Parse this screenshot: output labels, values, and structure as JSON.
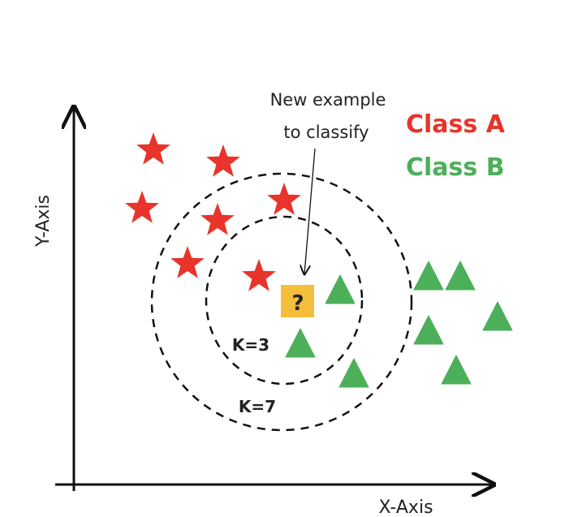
{
  "axes": {
    "x_label": "X-Axis",
    "y_label": "Y-Axis"
  },
  "annotation": {
    "line1": "New example",
    "line2": "to classify"
  },
  "legend": [
    {
      "label": "Class A",
      "color": "#e8342a",
      "shape": "star"
    },
    {
      "label": "Class B",
      "color": "#4caf5a",
      "shape": "triangle"
    }
  ],
  "query_point": {
    "symbol": "?",
    "color": "#f4bd3c"
  },
  "neighborhoods": [
    {
      "label": "K=3"
    },
    {
      "label": "K=7"
    }
  ]
}
